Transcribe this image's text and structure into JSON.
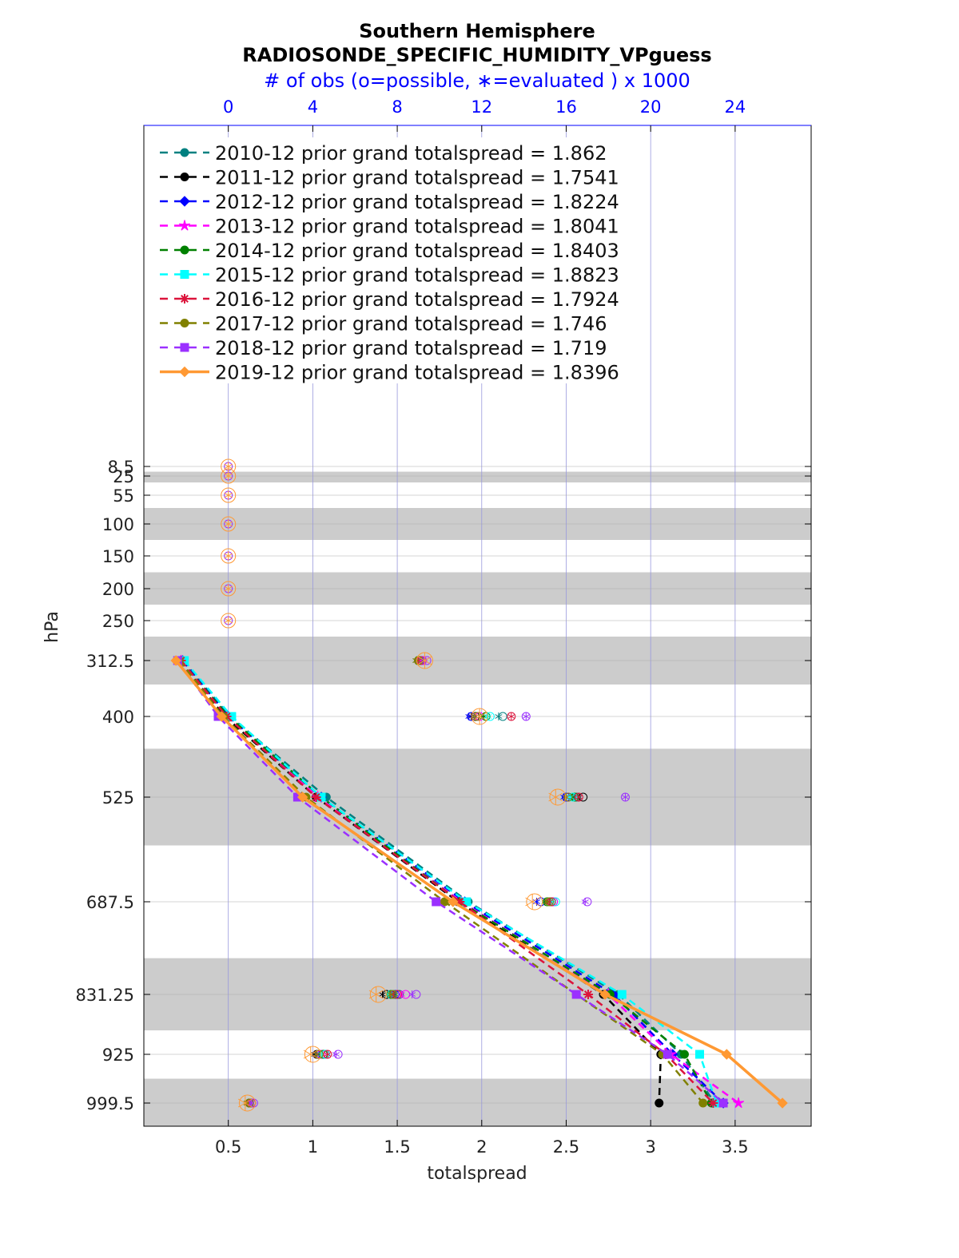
{
  "chart_data": {
    "type": "line",
    "title": "Southern Hemisphere",
    "subtitle": "RADIOSONDE_SPECIFIC_HUMIDITY_VPguess",
    "top_axis_label": "# of obs (o=possible, ∗=evaluated ) x 1000",
    "xlabel": "totalspread",
    "ylabel": "hPa",
    "xlim": [
      0,
      3.95
    ],
    "x_ticks": [
      0.5,
      1,
      1.5,
      2,
      2.5,
      3,
      3.5
    ],
    "x_tick_labels": [
      "0.5",
      "1",
      "1.5",
      "2",
      "2.5",
      "3",
      "3.5"
    ],
    "top_xlim": [
      -4,
      27.6
    ],
    "top_ticks": [
      0,
      4,
      8,
      12,
      16,
      20,
      24
    ],
    "top_tick_labels": [
      "0",
      "4",
      "8",
      "12",
      "16",
      "20",
      "24"
    ],
    "levels": [
      8.5,
      25,
      55,
      100,
      150,
      200,
      250,
      312.5,
      400,
      525,
      687.5,
      831.25,
      925,
      999.5
    ],
    "level_labels": [
      "8.5",
      "25",
      "55",
      "100",
      "150",
      "200",
      "250",
      "312.5",
      "400",
      "525",
      "687.5",
      "831.25",
      "925",
      "999.5"
    ],
    "shaded_bands": [
      [
        17.5,
        35
      ],
      [
        75,
        125
      ],
      [
        175,
        225
      ],
      [
        275,
        350
      ],
      [
        450,
        600
      ],
      [
        775,
        887.5
      ],
      [
        962.25,
        1037
      ]
    ],
    "series": [
      {
        "name": "2010-12",
        "legend": "2010-12 prior grand totalspread = 1.862",
        "color": "#008080",
        "marker": "circle",
        "dash": "dash",
        "values": [
          0.23,
          0.51,
          1.08,
          1.92,
          2.81,
          3.18,
          3.38
        ],
        "possible_k": [
          9.2,
          13.0,
          16.5,
          15.4,
          8.1,
          4.5,
          1.1
        ],
        "used_k": [
          9.2,
          12.8,
          16.4,
          15.2,
          7.9,
          4.3,
          1.0
        ]
      },
      {
        "name": "2011-12",
        "legend": "2011-12 prior grand totalspread = 1.7541",
        "color": "#000000",
        "marker": "circle",
        "dash": "dash",
        "values": [
          0.21,
          0.48,
          1.02,
          1.86,
          2.72,
          3.06,
          3.05
        ],
        "possible_k": [
          9.0,
          11.7,
          16.8,
          15.3,
          7.5,
          4.2,
          1.0
        ],
        "used_k": [
          9.0,
          11.5,
          16.6,
          15.1,
          7.3,
          4.1,
          0.9
        ]
      },
      {
        "name": "2012-12",
        "legend": "2012-12 prior grand totalspread = 1.8224",
        "color": "#0000ff",
        "marker": "diamond",
        "dash": "dash",
        "values": [
          0.23,
          0.5,
          1.05,
          1.9,
          2.78,
          3.13,
          3.43
        ],
        "possible_k": [
          9.1,
          11.5,
          16.0,
          14.8,
          7.9,
          4.6,
          1.1
        ],
        "used_k": [
          9.0,
          11.4,
          15.9,
          14.6,
          7.7,
          4.3,
          1.0
        ]
      },
      {
        "name": "2013-12",
        "legend": "2013-12 prior grand totalspread = 1.8041",
        "color": "#ff00ff",
        "marker": "star",
        "dash": "dash",
        "values": [
          0.22,
          0.49,
          1.03,
          1.88,
          2.75,
          3.12,
          3.52
        ],
        "possible_k": [
          9.2,
          11.9,
          16.1,
          15.4,
          8.4,
          4.4,
          1.1
        ],
        "used_k": [
          9.1,
          11.7,
          16.0,
          15.2,
          8.2,
          4.2,
          1.0
        ]
      },
      {
        "name": "2014-12",
        "legend": "2014-12 prior grand totalspread = 1.8403",
        "color": "#008000",
        "marker": "hexagram",
        "dash": "dash",
        "values": [
          0.22,
          0.5,
          1.05,
          1.87,
          2.76,
          3.2,
          3.36
        ],
        "possible_k": [
          9.0,
          12.2,
          16.4,
          15.1,
          7.7,
          4.5,
          1.0
        ],
        "used_k": [
          8.9,
          12.1,
          16.3,
          15.0,
          7.6,
          4.4,
          0.9
        ]
      },
      {
        "name": "2015-12",
        "legend": "2015-12 prior grand totalspread = 1.8823",
        "color": "#00ffff",
        "marker": "square",
        "dash": "dash",
        "values": [
          0.24,
          0.52,
          1.05,
          1.91,
          2.83,
          3.29,
          3.39
        ],
        "possible_k": [
          9.1,
          12.4,
          16.3,
          15.5,
          7.8,
          4.6,
          1.1
        ],
        "used_k": [
          9.0,
          12.3,
          16.2,
          15.4,
          7.6,
          4.4,
          1.0
        ]
      },
      {
        "name": "2016-12",
        "legend": "2016-12 prior grand totalspread = 1.7924",
        "color": "#dc143c",
        "marker": "asterisk",
        "dash": "dash",
        "values": [
          0.22,
          0.49,
          1.02,
          1.87,
          2.63,
          3.09,
          3.37
        ],
        "possible_k": [
          9.1,
          13.4,
          16.6,
          15.3,
          8.0,
          4.7,
          1.1
        ],
        "used_k": [
          9.0,
          13.4,
          16.6,
          15.2,
          7.8,
          4.7,
          1.0
        ]
      },
      {
        "name": "2017-12",
        "legend": "2017-12 prior grand totalspread = 1.746",
        "color": "#808000",
        "marker": "circle",
        "dash": "dash",
        "values": [
          0.21,
          0.47,
          0.96,
          1.78,
          2.56,
          3.07,
          3.31
        ],
        "possible_k": [
          9.0,
          11.8,
          16.1,
          15.2,
          7.8,
          4.3,
          1.0
        ],
        "used_k": [
          8.9,
          11.7,
          16.0,
          15.1,
          7.7,
          4.2,
          0.9
        ]
      },
      {
        "name": "2018-12",
        "legend": "2018-12 prior grand totalspread = 1.719",
        "color": "#9b30ff",
        "marker": "square",
        "dash": "dash",
        "values": [
          0.2,
          0.44,
          0.91,
          1.73,
          2.56,
          3.1,
          3.43
        ],
        "possible_k": [
          9.4,
          14.1,
          18.8,
          17.0,
          8.9,
          5.2,
          1.2
        ],
        "used_k": [
          9.3,
          14.1,
          18.8,
          16.9,
          8.7,
          5.1,
          1.1
        ]
      },
      {
        "name": "2019-12",
        "legend": "2019-12 prior grand totalspread = 1.8396",
        "color": "#ff9933",
        "marker": "diamond",
        "dash": "solid",
        "values": [
          0.19,
          0.46,
          0.94,
          1.83,
          2.73,
          3.45,
          3.78
        ],
        "possible_k": [
          9.3,
          11.9,
          15.6,
          14.5,
          7.1,
          4.0,
          0.9
        ],
        "used_k": [
          9.3,
          11.9,
          15.5,
          14.4,
          7.0,
          3.9,
          0.8
        ]
      }
    ],
    "upper_level_obs": {
      "levels": [
        8.5,
        25,
        55,
        100,
        150,
        200,
        250
      ],
      "count_k": 0
    }
  }
}
